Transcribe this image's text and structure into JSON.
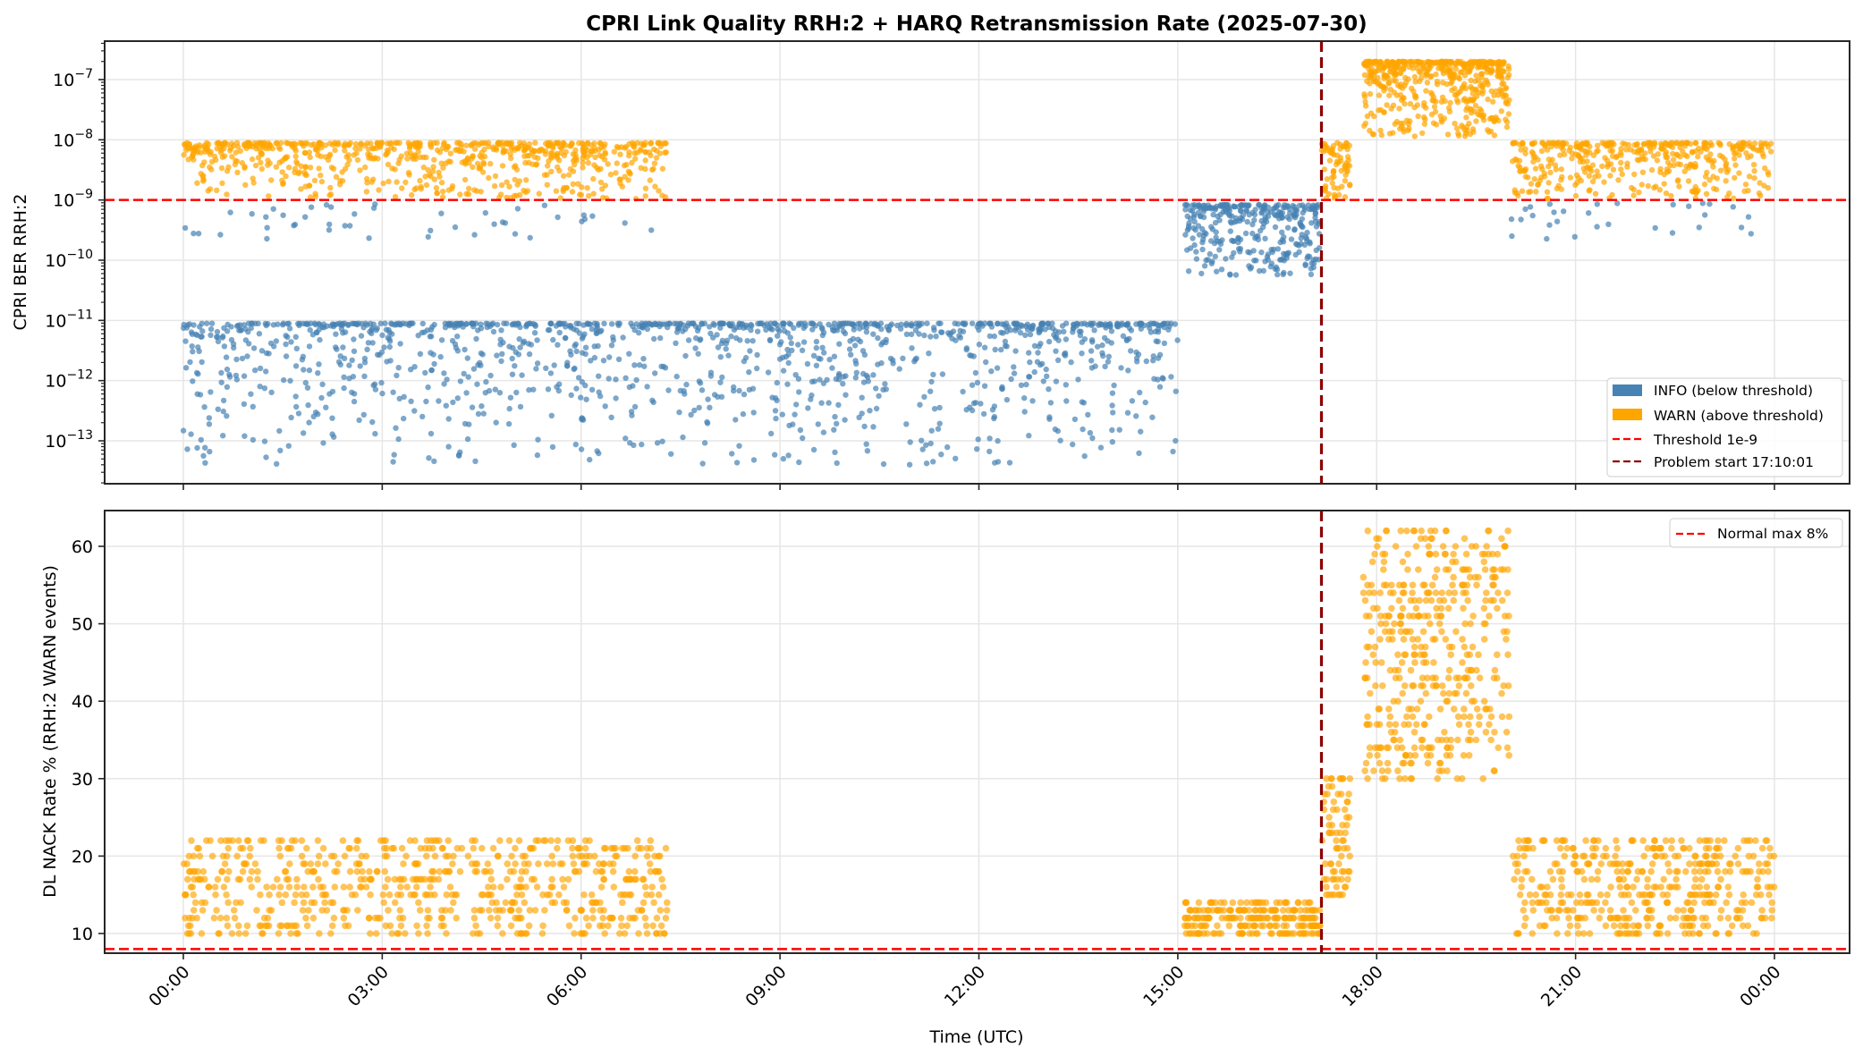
{
  "chart_data": [
    {
      "type": "scatter",
      "title": "CPRI Link Quality RRH:2 + HARQ Retransmission Rate (2025-07-30)",
      "panel": "top",
      "xlabel": "",
      "ylabel": "CPRI BER RRH:2",
      "yscale": "log",
      "ylim": [
        2e-14,
        4.5e-07
      ],
      "yticks": [
        "10^-13",
        "10^-12",
        "10^-11",
        "10^-10",
        "10^-9",
        "10^-8",
        "10^-7"
      ],
      "ytick_exponents": [
        -13,
        -12,
        -11,
        -10,
        -9,
        -8,
        -7
      ],
      "xlim_hours": [
        -0.9,
        25.2
      ],
      "grid": true,
      "legend_position": "lower right",
      "legend": [
        {
          "label": "INFO (below threshold)",
          "kind": "patch",
          "color": "#4682b4"
        },
        {
          "label": "WARN (above threshold)",
          "kind": "patch",
          "color": "#ffa500"
        },
        {
          "label": "Threshold 1e-9",
          "kind": "dashed",
          "color": "#ff0000"
        },
        {
          "label": "Problem start 17:10:01",
          "kind": "dashed",
          "color": "#8b0000"
        }
      ],
      "hlines": [
        {
          "y": 1e-09,
          "label": "Threshold 1e-9",
          "color": "#ff0000"
        }
      ],
      "vlines": [
        {
          "x_hour": 17.1669,
          "label": "Problem start 17:10:01",
          "color": "#8b0000"
        }
      ],
      "series": [
        {
          "name": "INFO (below threshold)",
          "color": "#4682b4",
          "segments": [
            {
              "x_start": 0.0,
              "x_end": 15.0,
              "y_log_range": [
                -13.4,
                -11.05
              ],
              "bias": 3.0,
              "count": 1350,
              "description": "baseline BER ~1e-12 to 9e-12"
            },
            {
              "x_start": 0.0,
              "x_end": 7.3,
              "y_log_range": [
                -9.65,
                -9.05
              ],
              "bias": 1.2,
              "count": 45,
              "description": "sparse points just below threshold"
            },
            {
              "x_start": 15.1,
              "x_end": 17.15,
              "y_log_range": [
                -10.25,
                -9.08
              ],
              "bias": 2.0,
              "count": 330,
              "description": "pre-problem degradation ~1e-10 to 9e-10"
            },
            {
              "x_start": 20.0,
              "x_end": 23.85,
              "y_log_range": [
                -9.7,
                -9.05
              ],
              "bias": 1.3,
              "count": 30,
              "description": "sparse points just below threshold after recovery"
            }
          ]
        },
        {
          "name": "WARN (above threshold)",
          "color": "#ffa500",
          "segments": [
            {
              "x_start": 0.0,
              "x_end": 7.3,
              "y_log_range": [
                -8.98,
                -8.05
              ],
              "bias": 2.2,
              "count": 720,
              "description": "early warn 1e-9 to 9e-9"
            },
            {
              "x_start": 17.17,
              "x_end": 17.6,
              "y_log_range": [
                -8.98,
                -8.05
              ],
              "bias": 1.6,
              "count": 70,
              "description": "problem onset"
            },
            {
              "x_start": 17.8,
              "x_end": 20.0,
              "y_log_range": [
                -7.95,
                -6.7
              ],
              "bias": 2.5,
              "count": 520,
              "description": "peak BER ~1e-8 to 2e-7"
            },
            {
              "x_start": 20.05,
              "x_end": 23.95,
              "y_log_range": [
                -8.98,
                -8.05
              ],
              "bias": 2.2,
              "count": 420,
              "description": "post-peak warn 1e-9 to 9e-9"
            }
          ]
        }
      ]
    },
    {
      "type": "scatter",
      "panel": "bottom",
      "xlabel": "Time (UTC)",
      "ylabel": "DL NACK Rate % (RRH:2 WARN events)",
      "ylim": [
        7.5,
        65
      ],
      "yticks": [
        10,
        20,
        30,
        40,
        50,
        60
      ],
      "xticks": [
        "00:00",
        "03:00",
        "06:00",
        "09:00",
        "12:00",
        "15:00",
        "18:00",
        "21:00",
        "00:00"
      ],
      "xtick_hours": [
        0,
        3,
        6,
        9,
        12,
        15,
        18,
        21,
        24
      ],
      "xlim_hours": [
        -0.9,
        25.2
      ],
      "grid": true,
      "legend_position": "upper right",
      "legend": [
        {
          "label": "Normal max 8%",
          "kind": "dashed",
          "color": "#ff0000"
        }
      ],
      "hlines": [
        {
          "y": 8,
          "label": "Normal max 8%",
          "color": "#ff0000"
        }
      ],
      "vlines": [
        {
          "x_hour": 17.1669,
          "label": "Problem start 17:10:01",
          "color": "#8b0000"
        }
      ],
      "series": [
        {
          "name": "DL NACK Rate %",
          "color": "#ffa500",
          "segments": [
            {
              "x_start": 0.0,
              "x_end": 7.3,
              "y_int_range": [
                10,
                22
              ],
              "count": 640,
              "description": "baseline NACK 10-22%"
            },
            {
              "x_start": 15.1,
              "x_end": 17.15,
              "y_int_range": [
                10,
                14
              ],
              "count": 230,
              "description": "pre-problem 10-14%"
            },
            {
              "x_start": 17.17,
              "x_end": 17.6,
              "y_int_range": [
                15,
                30
              ],
              "count": 75,
              "description": "onset 15-30%"
            },
            {
              "x_start": 17.8,
              "x_end": 20.0,
              "y_int_range": [
                30,
                62
              ],
              "count": 430,
              "description": "peak 30-62%"
            },
            {
              "x_start": 20.05,
              "x_end": 24.0,
              "y_int_range": [
                10,
                22
              ],
              "count": 430,
              "description": "post-peak 10-22%"
            }
          ]
        }
      ]
    }
  ],
  "labels": {
    "title": "CPRI Link Quality RRH:2 + HARQ Retransmission Rate (2025-07-30)",
    "top_ylabel": "CPRI BER RRH:2",
    "bottom_ylabel": "DL NACK Rate % (RRH:2 WARN events)",
    "xlabel": "Time (UTC)",
    "top_legend": [
      "INFO (below threshold)",
      "WARN (above threshold)",
      "Threshold 1e-9",
      "Problem start 17:10:01"
    ],
    "bottom_legend": [
      "Normal max 8%"
    ],
    "xticks": [
      "00:00",
      "03:00",
      "06:00",
      "09:00",
      "12:00",
      "15:00",
      "18:00",
      "21:00",
      "00:00"
    ]
  },
  "colors": {
    "info": "#4682b4",
    "warn": "#ffa500",
    "threshold": "#ff0000",
    "problem": "#8b0000",
    "grid": "#e6e6e6",
    "axes": "#262626"
  }
}
